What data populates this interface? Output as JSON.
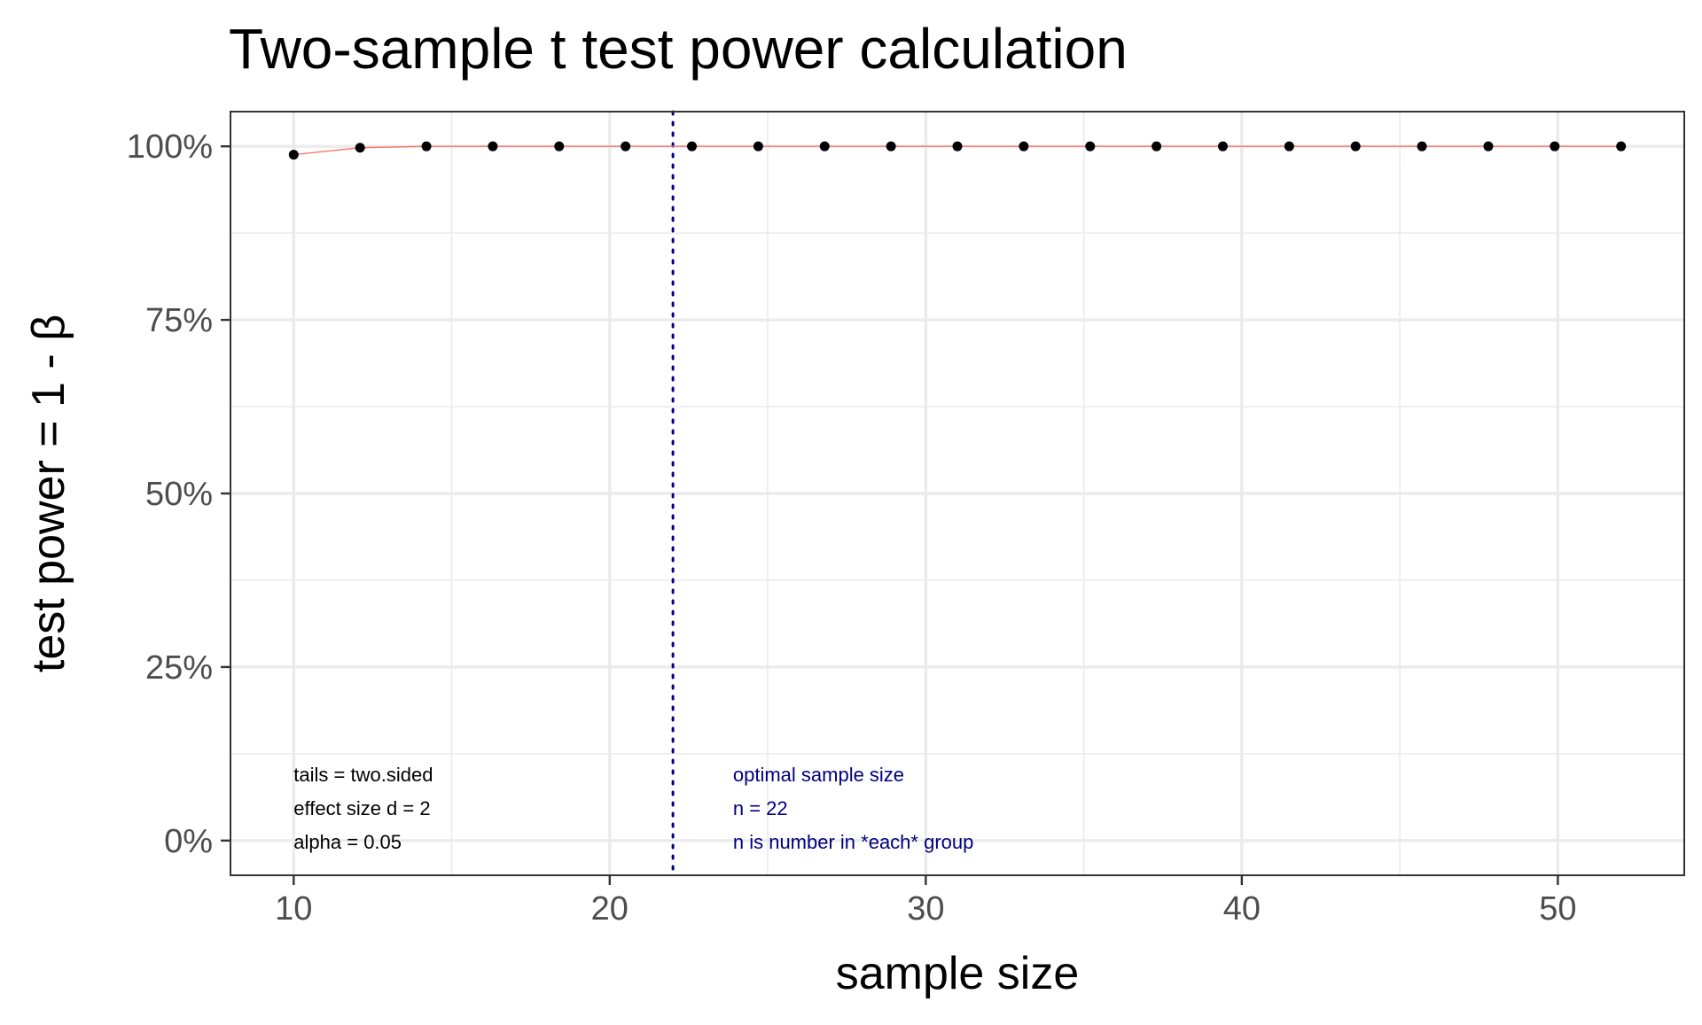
{
  "chart_data": {
    "type": "line",
    "title": "Two-sample t test power calculation",
    "xlabel": "sample size",
    "ylabel": "test power = 1 - β",
    "xlim": [
      8,
      54
    ],
    "ylim": [
      -0.05,
      1.05
    ],
    "x_ticks": [
      10,
      20,
      30,
      40,
      50
    ],
    "x_minor_ticks": [
      15,
      25,
      35,
      45
    ],
    "y_ticks": [
      0,
      0.25,
      0.5,
      0.75,
      1.0
    ],
    "y_tick_labels": [
      "0%",
      "25%",
      "50%",
      "75%",
      "100%"
    ],
    "y_minor_ticks": [
      0.125,
      0.375,
      0.625,
      0.875
    ],
    "grid": true,
    "series": [
      {
        "x": [
          10,
          12.1,
          14.2,
          16.3,
          18.4,
          20.5,
          22.6,
          24.7,
          26.8,
          28.9,
          31.0,
          33.1,
          35.2,
          37.3,
          39.4,
          41.5,
          43.6,
          45.7,
          47.8,
          49.9,
          52.0
        ],
        "y": [
          0.988,
          0.998,
          1.0,
          1.0,
          1.0,
          1.0,
          1.0,
          1.0,
          1.0,
          1.0,
          1.0,
          1.0,
          1.0,
          1.0,
          1.0,
          1.0,
          1.0,
          1.0,
          1.0,
          1.0,
          1.0
        ],
        "line_color": "#F8766D",
        "point_color": "#000000"
      }
    ],
    "vline": {
      "x": 22,
      "color": "#000080",
      "style": "dotted"
    },
    "annotations": {
      "params": {
        "color": "#000000",
        "lines": [
          "tails = two.sided",
          "effect size d = 2",
          "alpha = 0.05"
        ]
      },
      "optimal": {
        "color": "#000080",
        "lines": [
          "optimal sample size",
          "n = 22",
          "n is number in *each* group"
        ]
      }
    }
  }
}
